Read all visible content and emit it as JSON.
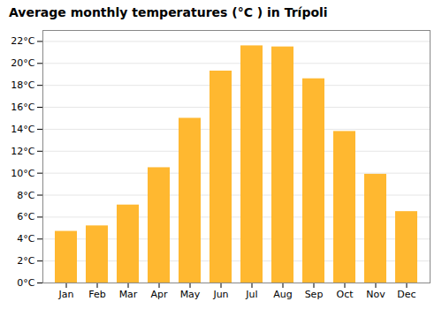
{
  "chart_data": {
    "type": "bar",
    "title": "Average monthly temperatures (°C ) in Trípoli",
    "categories": [
      "Jan",
      "Feb",
      "Mar",
      "Apr",
      "May",
      "Jun",
      "Jul",
      "Aug",
      "Sep",
      "Oct",
      "Nov",
      "Dec"
    ],
    "values": [
      4.7,
      5.2,
      7.1,
      10.5,
      15.0,
      19.3,
      21.6,
      21.5,
      18.6,
      13.8,
      9.9,
      6.5
    ],
    "color": "#FFB830",
    "ylim": [
      0,
      23
    ],
    "yticks": [
      {
        "value": 0,
        "label": "0°C"
      },
      {
        "value": 2,
        "label": "2°C"
      },
      {
        "value": 4,
        "label": "4°C"
      },
      {
        "value": 6,
        "label": "6°C"
      },
      {
        "value": 8,
        "label": "8°C"
      },
      {
        "value": 10,
        "label": "10°C"
      },
      {
        "value": 12,
        "label": "12°C"
      },
      {
        "value": 14,
        "label": "14°C"
      },
      {
        "value": 16,
        "label": "16°C"
      },
      {
        "value": 18,
        "label": "18°C"
      },
      {
        "value": 20,
        "label": "20°C"
      },
      {
        "value": 22,
        "label": "22°C"
      }
    ],
    "grid": true
  }
}
